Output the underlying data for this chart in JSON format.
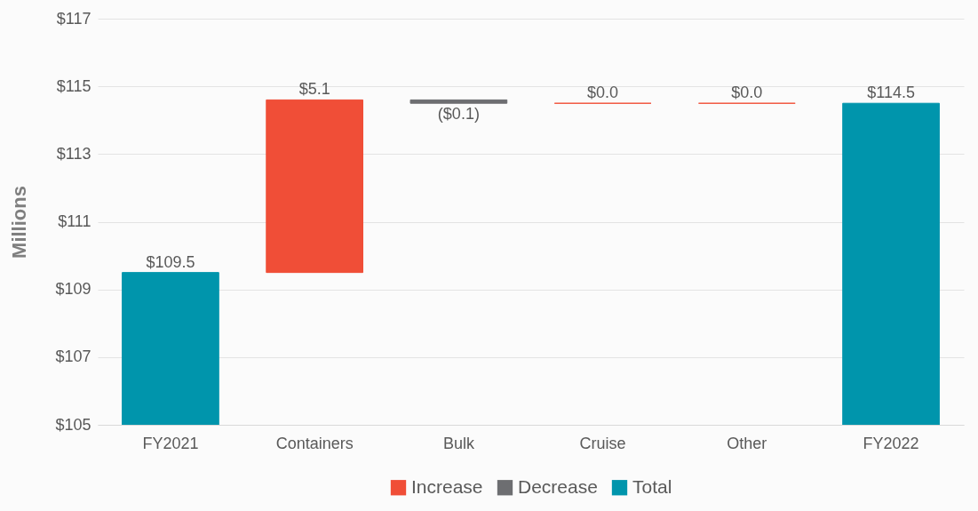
{
  "chart_data": {
    "type": "bar",
    "ylabel": "Millions",
    "categories": [
      "FY2021",
      "Containers",
      "Bulk",
      "Cruise",
      "Other",
      "FY2022"
    ],
    "series": [
      {
        "name": "Increase",
        "color": "#f04e37",
        "values": [
          null,
          5.1,
          null,
          0.0,
          0.0,
          null
        ],
        "base": [
          null,
          109.5,
          null,
          114.5,
          114.5,
          null
        ],
        "value_labels": [
          null,
          "$5.1",
          null,
          "$0.0",
          "$0.0",
          null
        ]
      },
      {
        "name": "Decrease",
        "color": "#6d6e71",
        "values": [
          null,
          null,
          -0.1,
          null,
          null,
          null
        ],
        "base": [
          null,
          null,
          114.6,
          null,
          null,
          null
        ],
        "value_labels": [
          null,
          null,
          "($0.1)",
          null,
          null,
          null
        ]
      },
      {
        "name": "Total",
        "color": "#0095ac",
        "values": [
          109.5,
          null,
          null,
          null,
          null,
          114.5
        ],
        "value_labels": [
          "$109.5",
          null,
          null,
          null,
          null,
          "$114.5"
        ]
      }
    ],
    "ylim": [
      105,
      117
    ],
    "yticks": [
      {
        "value": 105,
        "label": "$105"
      },
      {
        "value": 107,
        "label": "$107"
      },
      {
        "value": 109,
        "label": "$109"
      },
      {
        "value": 111,
        "label": "$111"
      },
      {
        "value": 113,
        "label": "$113"
      },
      {
        "value": 115,
        "label": "$115"
      },
      {
        "value": 117,
        "label": "$117"
      }
    ],
    "grid": "y",
    "legend": "bottom"
  }
}
